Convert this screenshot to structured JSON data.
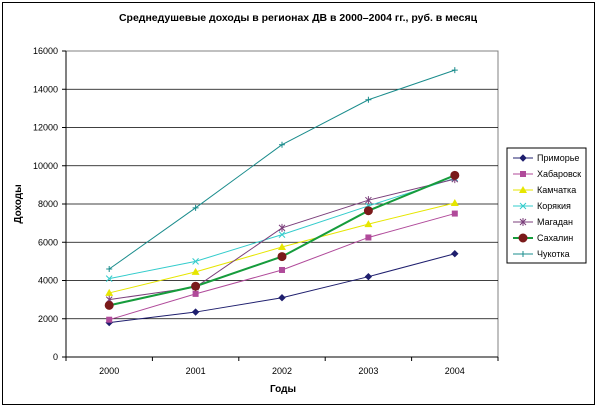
{
  "chart_data": {
    "type": "line",
    "title": "Среднедушевые доходы в регионах ДВ в 2000–2004 гг., руб. в месяц",
    "xlabel": "Годы",
    "ylabel": "Доходы",
    "categories": [
      "2000",
      "2001",
      "2002",
      "2003",
      "2004"
    ],
    "ylim": [
      0,
      16000
    ],
    "yticks": [
      0,
      2000,
      4000,
      6000,
      8000,
      10000,
      12000,
      14000,
      16000
    ],
    "grid": "horizontal major",
    "legend_position": "right",
    "series": [
      {
        "name": "Приморье",
        "values": [
          1800,
          2350,
          3100,
          4200,
          5400
        ],
        "color": "#1f1f6e",
        "marker": "diamond"
      },
      {
        "name": "Хабаровск",
        "values": [
          1950,
          3300,
          4550,
          6250,
          7500
        ],
        "color": "#b04a9a",
        "marker": "square"
      },
      {
        "name": "Камчатка",
        "values": [
          3350,
          4450,
          5750,
          6950,
          8050
        ],
        "color": "#e6e600",
        "marker": "triangle"
      },
      {
        "name": "Корякия",
        "values": [
          4100,
          5000,
          6400,
          7900,
          9350
        ],
        "color": "#33cccc",
        "marker": "x"
      },
      {
        "name": "Магадан",
        "values": [
          3000,
          3650,
          6750,
          8200,
          9300
        ],
        "color": "#7b3f7b",
        "marker": "star"
      },
      {
        "name": "Сахалин",
        "values": [
          2700,
          3700,
          5250,
          7650,
          9500
        ],
        "color": "#169c3c",
        "marker": "circle",
        "marker_color": "#7a1a1a"
      },
      {
        "name": "Чукотка",
        "values": [
          4600,
          7800,
          11100,
          13450,
          15000
        ],
        "color": "#1a8c8c",
        "marker": "plus"
      }
    ]
  }
}
